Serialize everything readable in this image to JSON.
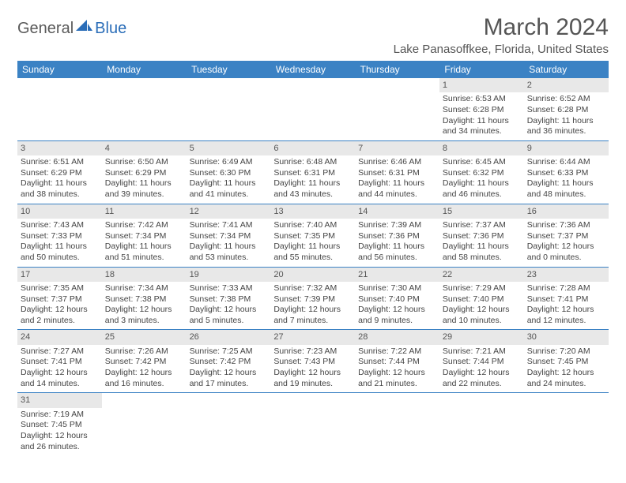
{
  "brand": {
    "part1": "General",
    "part2": "Blue"
  },
  "title": "March 2024",
  "location": "Lake Panasoffkee, Florida, United States",
  "colors": {
    "header_bg": "#3b82c4",
    "header_text": "#ffffff",
    "daynum_bg": "#e8e8e8",
    "border": "#3b82c4",
    "logo_gray": "#5a5a5a",
    "logo_blue": "#2a6db8",
    "text": "#444444",
    "title_color": "#555555"
  },
  "day_headers": [
    "Sunday",
    "Monday",
    "Tuesday",
    "Wednesday",
    "Thursday",
    "Friday",
    "Saturday"
  ],
  "weeks": [
    [
      {
        "n": "",
        "lines": []
      },
      {
        "n": "",
        "lines": []
      },
      {
        "n": "",
        "lines": []
      },
      {
        "n": "",
        "lines": []
      },
      {
        "n": "",
        "lines": []
      },
      {
        "n": "1",
        "lines": [
          "Sunrise: 6:53 AM",
          "Sunset: 6:28 PM",
          "Daylight: 11 hours and 34 minutes."
        ]
      },
      {
        "n": "2",
        "lines": [
          "Sunrise: 6:52 AM",
          "Sunset: 6:28 PM",
          "Daylight: 11 hours and 36 minutes."
        ]
      }
    ],
    [
      {
        "n": "3",
        "lines": [
          "Sunrise: 6:51 AM",
          "Sunset: 6:29 PM",
          "Daylight: 11 hours and 38 minutes."
        ]
      },
      {
        "n": "4",
        "lines": [
          "Sunrise: 6:50 AM",
          "Sunset: 6:29 PM",
          "Daylight: 11 hours and 39 minutes."
        ]
      },
      {
        "n": "5",
        "lines": [
          "Sunrise: 6:49 AM",
          "Sunset: 6:30 PM",
          "Daylight: 11 hours and 41 minutes."
        ]
      },
      {
        "n": "6",
        "lines": [
          "Sunrise: 6:48 AM",
          "Sunset: 6:31 PM",
          "Daylight: 11 hours and 43 minutes."
        ]
      },
      {
        "n": "7",
        "lines": [
          "Sunrise: 6:46 AM",
          "Sunset: 6:31 PM",
          "Daylight: 11 hours and 44 minutes."
        ]
      },
      {
        "n": "8",
        "lines": [
          "Sunrise: 6:45 AM",
          "Sunset: 6:32 PM",
          "Daylight: 11 hours and 46 minutes."
        ]
      },
      {
        "n": "9",
        "lines": [
          "Sunrise: 6:44 AM",
          "Sunset: 6:33 PM",
          "Daylight: 11 hours and 48 minutes."
        ]
      }
    ],
    [
      {
        "n": "10",
        "lines": [
          "Sunrise: 7:43 AM",
          "Sunset: 7:33 PM",
          "Daylight: 11 hours and 50 minutes."
        ]
      },
      {
        "n": "11",
        "lines": [
          "Sunrise: 7:42 AM",
          "Sunset: 7:34 PM",
          "Daylight: 11 hours and 51 minutes."
        ]
      },
      {
        "n": "12",
        "lines": [
          "Sunrise: 7:41 AM",
          "Sunset: 7:34 PM",
          "Daylight: 11 hours and 53 minutes."
        ]
      },
      {
        "n": "13",
        "lines": [
          "Sunrise: 7:40 AM",
          "Sunset: 7:35 PM",
          "Daylight: 11 hours and 55 minutes."
        ]
      },
      {
        "n": "14",
        "lines": [
          "Sunrise: 7:39 AM",
          "Sunset: 7:36 PM",
          "Daylight: 11 hours and 56 minutes."
        ]
      },
      {
        "n": "15",
        "lines": [
          "Sunrise: 7:37 AM",
          "Sunset: 7:36 PM",
          "Daylight: 11 hours and 58 minutes."
        ]
      },
      {
        "n": "16",
        "lines": [
          "Sunrise: 7:36 AM",
          "Sunset: 7:37 PM",
          "Daylight: 12 hours and 0 minutes."
        ]
      }
    ],
    [
      {
        "n": "17",
        "lines": [
          "Sunrise: 7:35 AM",
          "Sunset: 7:37 PM",
          "Daylight: 12 hours and 2 minutes."
        ]
      },
      {
        "n": "18",
        "lines": [
          "Sunrise: 7:34 AM",
          "Sunset: 7:38 PM",
          "Daylight: 12 hours and 3 minutes."
        ]
      },
      {
        "n": "19",
        "lines": [
          "Sunrise: 7:33 AM",
          "Sunset: 7:38 PM",
          "Daylight: 12 hours and 5 minutes."
        ]
      },
      {
        "n": "20",
        "lines": [
          "Sunrise: 7:32 AM",
          "Sunset: 7:39 PM",
          "Daylight: 12 hours and 7 minutes."
        ]
      },
      {
        "n": "21",
        "lines": [
          "Sunrise: 7:30 AM",
          "Sunset: 7:40 PM",
          "Daylight: 12 hours and 9 minutes."
        ]
      },
      {
        "n": "22",
        "lines": [
          "Sunrise: 7:29 AM",
          "Sunset: 7:40 PM",
          "Daylight: 12 hours and 10 minutes."
        ]
      },
      {
        "n": "23",
        "lines": [
          "Sunrise: 7:28 AM",
          "Sunset: 7:41 PM",
          "Daylight: 12 hours and 12 minutes."
        ]
      }
    ],
    [
      {
        "n": "24",
        "lines": [
          "Sunrise: 7:27 AM",
          "Sunset: 7:41 PM",
          "Daylight: 12 hours and 14 minutes."
        ]
      },
      {
        "n": "25",
        "lines": [
          "Sunrise: 7:26 AM",
          "Sunset: 7:42 PM",
          "Daylight: 12 hours and 16 minutes."
        ]
      },
      {
        "n": "26",
        "lines": [
          "Sunrise: 7:25 AM",
          "Sunset: 7:42 PM",
          "Daylight: 12 hours and 17 minutes."
        ]
      },
      {
        "n": "27",
        "lines": [
          "Sunrise: 7:23 AM",
          "Sunset: 7:43 PM",
          "Daylight: 12 hours and 19 minutes."
        ]
      },
      {
        "n": "28",
        "lines": [
          "Sunrise: 7:22 AM",
          "Sunset: 7:44 PM",
          "Daylight: 12 hours and 21 minutes."
        ]
      },
      {
        "n": "29",
        "lines": [
          "Sunrise: 7:21 AM",
          "Sunset: 7:44 PM",
          "Daylight: 12 hours and 22 minutes."
        ]
      },
      {
        "n": "30",
        "lines": [
          "Sunrise: 7:20 AM",
          "Sunset: 7:45 PM",
          "Daylight: 12 hours and 24 minutes."
        ]
      }
    ],
    [
      {
        "n": "31",
        "lines": [
          "Sunrise: 7:19 AM",
          "Sunset: 7:45 PM",
          "Daylight: 12 hours and 26 minutes."
        ]
      },
      {
        "n": "",
        "lines": []
      },
      {
        "n": "",
        "lines": []
      },
      {
        "n": "",
        "lines": []
      },
      {
        "n": "",
        "lines": []
      },
      {
        "n": "",
        "lines": []
      },
      {
        "n": "",
        "lines": []
      }
    ]
  ]
}
